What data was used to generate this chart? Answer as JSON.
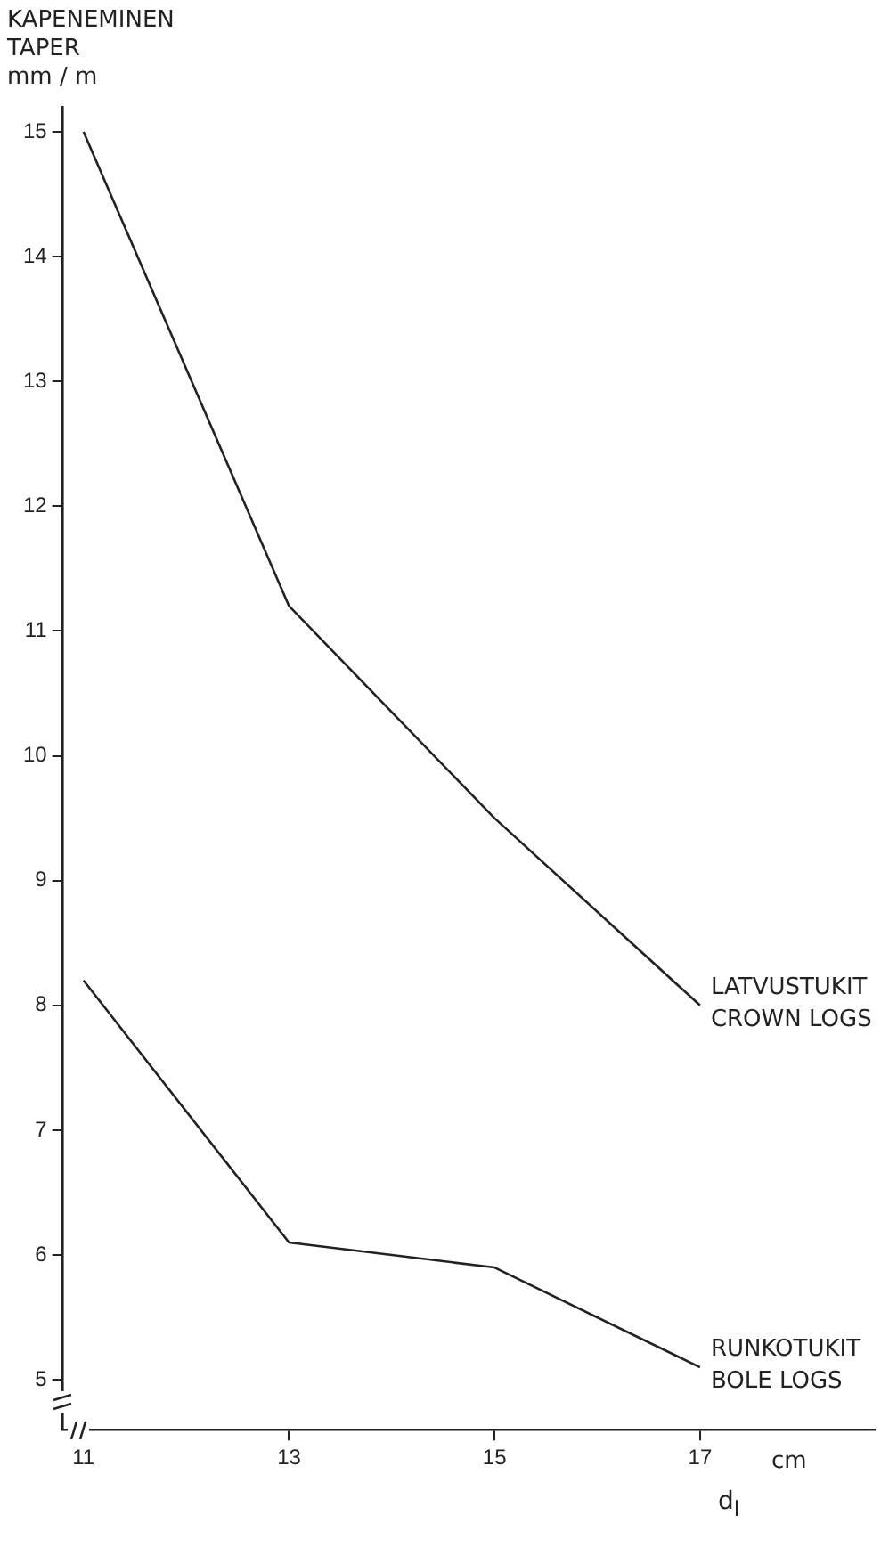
{
  "chart_data": {
    "type": "line",
    "ylabel": "KAPENEMINEN\nTAPER\nmm / m",
    "xlabel": "d$_{l}$",
    "annotations": [
      "cm"
    ],
    "x": [
      11,
      13,
      15,
      17
    ],
    "series": [
      {
        "name": "LATVUSTUKIT\nCROWN LOGS",
        "color": "#222222",
        "values": [
          15,
          11.2,
          9.5,
          8.0
        ]
      },
      {
        "name": "RUNKOTUKIT\nBOLE LOGS",
        "color": "#222222",
        "values": [
          8.2,
          6.1,
          5.9,
          5.1
        ]
      }
    ],
    "xlim": [
      10.8,
      18.7
    ],
    "xticks": [
      11,
      13,
      15,
      17
    ],
    "ylim": [
      4.6,
      15.2
    ],
    "yticks": [
      5,
      6,
      7,
      8,
      9,
      10,
      11,
      12,
      13,
      14,
      15
    ],
    "grid": false,
    "legend": false,
    "marker": "none",
    "line_style": "solid"
  }
}
